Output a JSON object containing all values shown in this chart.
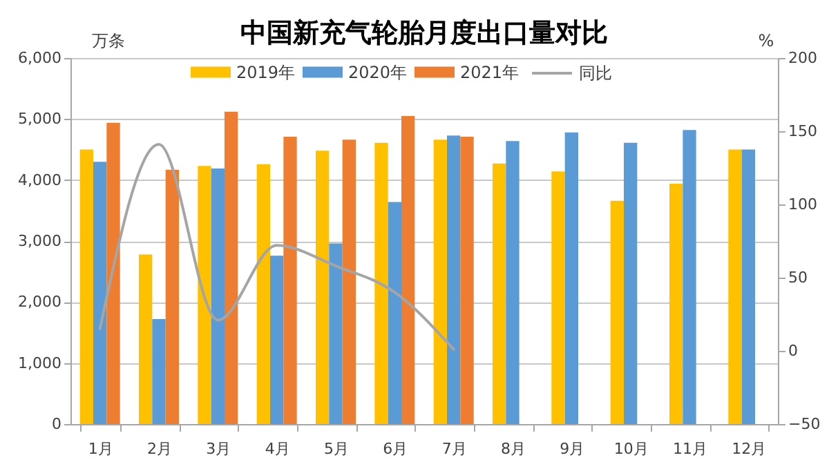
{
  "chart_data": {
    "type": "bar",
    "title": "中国新充气轮胎月度出口量对比",
    "ylabel": "万条",
    "y2label": "%",
    "categories": [
      "1月",
      "2月",
      "3月",
      "4月",
      "5月",
      "6月",
      "7月",
      "8月",
      "9月",
      "10月",
      "11月",
      "12月"
    ],
    "series": [
      {
        "name": "2019年",
        "color": "#FFC000",
        "values": [
          4500,
          2780,
          4230,
          4260,
          4480,
          4610,
          4660,
          4270,
          4140,
          3660,
          3940,
          4500
        ]
      },
      {
        "name": "2020年",
        "color": "#5B9BD5",
        "values": [
          4300,
          1720,
          4190,
          2760,
          2960,
          3640,
          4730,
          4640,
          4780,
          4610,
          4820,
          4500
        ]
      },
      {
        "name": "2021年",
        "color": "#ED7D31",
        "values": [
          4940,
          4170,
          5120,
          4710,
          4660,
          5050,
          4710,
          null,
          null,
          null,
          null,
          null
        ]
      },
      {
        "name": "同比",
        "type": "line",
        "axis": "y2",
        "color": "#A5A5A5",
        "values": [
          15,
          141,
          21,
          72,
          58,
          40,
          1,
          null,
          null,
          null,
          null,
          null
        ]
      }
    ],
    "ylim": [
      0,
      6000
    ],
    "yticks": [
      {
        "value": 0,
        "label": "0"
      },
      {
        "value": 1000,
        "label": "1,000"
      },
      {
        "value": 2000,
        "label": "2,000"
      },
      {
        "value": 3000,
        "label": "3,000"
      },
      {
        "value": 4000,
        "label": "4,000"
      },
      {
        "value": 5000,
        "label": "5,000"
      },
      {
        "value": 6000,
        "label": "6,000"
      }
    ],
    "y2lim": [
      -50,
      200
    ],
    "y2ticks": [
      -50,
      0,
      50,
      100,
      150,
      200
    ],
    "grid": "y",
    "legend": "top",
    "line_style": "solid"
  }
}
